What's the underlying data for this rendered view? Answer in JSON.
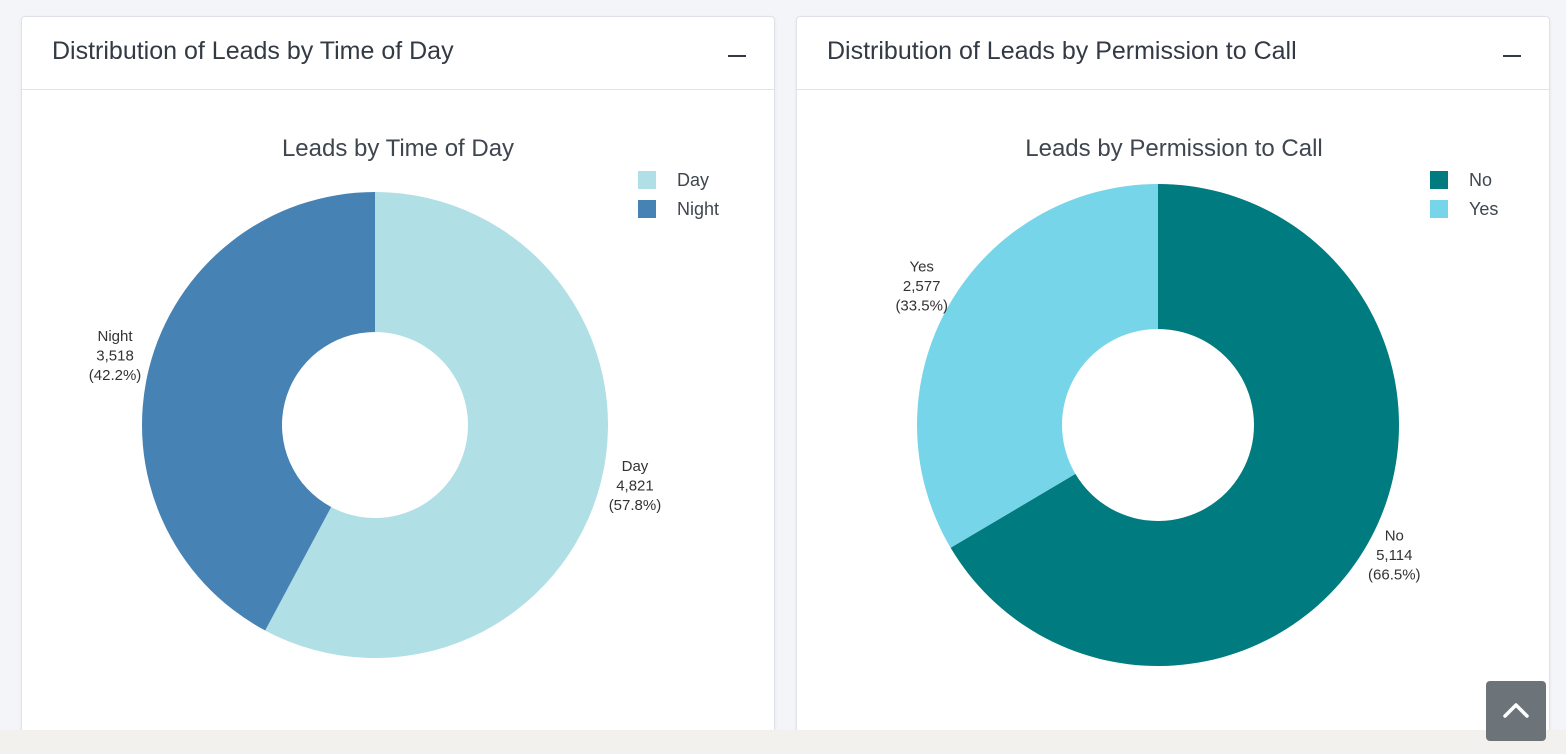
{
  "cards": [
    {
      "header_title": "Distribution of Leads by Time of Day",
      "collapse_icon": "minus-icon"
    },
    {
      "header_title": "Distribution of Leads by Permission to Call",
      "collapse_icon": "minus-icon"
    }
  ],
  "scroll_top_icon": "chevron-up-icon",
  "chart_data": [
    {
      "type": "pie",
      "variant": "donut",
      "title": "Leads by Time of Day",
      "legend_position": "top-right",
      "categories": [
        "Day",
        "Night"
      ],
      "values": [
        4821,
        3518
      ],
      "value_labels": [
        "4,821",
        "3,518"
      ],
      "percent_labels": [
        "(57.8%)",
        "(42.2%)"
      ],
      "colors": [
        "#b0dfe5",
        "#4682b4"
      ]
    },
    {
      "type": "pie",
      "variant": "donut",
      "title": "Leads by Permission to Call",
      "legend_position": "top-right",
      "categories": [
        "No",
        "Yes"
      ],
      "values": [
        5114,
        2577
      ],
      "value_labels": [
        "5,114",
        "2,577"
      ],
      "percent_labels": [
        "(66.5%)",
        "(33.5%)"
      ],
      "colors": [
        "#007b7f",
        "#76d5e8"
      ]
    }
  ]
}
